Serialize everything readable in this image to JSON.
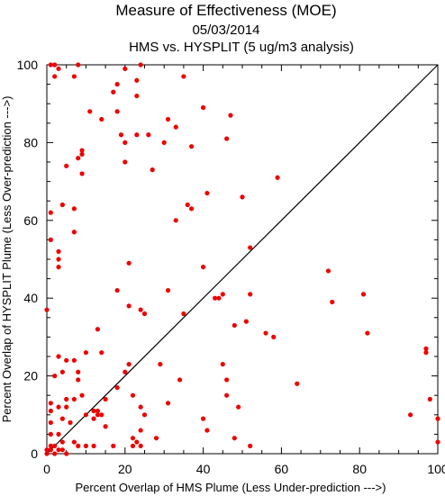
{
  "chart_data": {
    "type": "scatter",
    "title": "Measure of Effectiveness (MOE)",
    "subtitle": "05/03/2014",
    "subtitle2": "HMS vs. HYSPLIT  (5 ug/m3 analysis)",
    "xlabel": "Percent Overlap of HMS Plume (Less Under-prediction --->)",
    "ylabel": "Percent Overlap of HYSPLIT Plume (Less Over-prediction --->)",
    "xlim": [
      0,
      100
    ],
    "ylim": [
      0,
      100
    ],
    "xticks": [
      "0",
      "20",
      "40",
      "60",
      "80",
      "100"
    ],
    "yticks": [
      "0",
      "20",
      "40",
      "60",
      "80",
      "100"
    ],
    "grid": false,
    "point_color": "#ee0000",
    "reference_line": [
      [
        0,
        0
      ],
      [
        100,
        100
      ]
    ],
    "points": [
      [
        1,
        100
      ],
      [
        2,
        100
      ],
      [
        8,
        100
      ],
      [
        24,
        100
      ],
      [
        20,
        99
      ],
      [
        3,
        99
      ],
      [
        2,
        97
      ],
      [
        7,
        97
      ],
      [
        35,
        97
      ],
      [
        18,
        95
      ],
      [
        23,
        96
      ],
      [
        17,
        93
      ],
      [
        23,
        92
      ],
      [
        40,
        89
      ],
      [
        11,
        88
      ],
      [
        18,
        88
      ],
      [
        14,
        86
      ],
      [
        31,
        86
      ],
      [
        47,
        87
      ],
      [
        33,
        84
      ],
      [
        19,
        82
      ],
      [
        26,
        82
      ],
      [
        23,
        82
      ],
      [
        20,
        80
      ],
      [
        30,
        80
      ],
      [
        46,
        81
      ],
      [
        37,
        79
      ],
      [
        9,
        78
      ],
      [
        9,
        77
      ],
      [
        8,
        76
      ],
      [
        20,
        75
      ],
      [
        5,
        74
      ],
      [
        27,
        73
      ],
      [
        9,
        72
      ],
      [
        59,
        71
      ],
      [
        41,
        67
      ],
      [
        50,
        66
      ],
      [
        4,
        64
      ],
      [
        7,
        63
      ],
      [
        36,
        64
      ],
      [
        37,
        63
      ],
      [
        1,
        62
      ],
      [
        33,
        60
      ],
      [
        7,
        57
      ],
      [
        1,
        55
      ],
      [
        52,
        53
      ],
      [
        3,
        52
      ],
      [
        3,
        50
      ],
      [
        3,
        48
      ],
      [
        21,
        49
      ],
      [
        40,
        48
      ],
      [
        72,
        47
      ],
      [
        31,
        42
      ],
      [
        18,
        42
      ],
      [
        52,
        41
      ],
      [
        44,
        40
      ],
      [
        43,
        40
      ],
      [
        45,
        41
      ],
      [
        81,
        41
      ],
      [
        73,
        39
      ],
      [
        21,
        38
      ],
      [
        0,
        37
      ],
      [
        24,
        37
      ],
      [
        25,
        36
      ],
      [
        35,
        36
      ],
      [
        48,
        33
      ],
      [
        51,
        34
      ],
      [
        13,
        32
      ],
      [
        56,
        31
      ],
      [
        82,
        31
      ],
      [
        58,
        30
      ],
      [
        97,
        27
      ],
      [
        97,
        26
      ],
      [
        10,
        26
      ],
      [
        14,
        26
      ],
      [
        3,
        25
      ],
      [
        5,
        24
      ],
      [
        7,
        24
      ],
      [
        21,
        23
      ],
      [
        29,
        23
      ],
      [
        45,
        23
      ],
      [
        4,
        21
      ],
      [
        8,
        21
      ],
      [
        20,
        21
      ],
      [
        2,
        20
      ],
      [
        8,
        19
      ],
      [
        34,
        19
      ],
      [
        46,
        19
      ],
      [
        64,
        18
      ],
      [
        18,
        17
      ],
      [
        9,
        15
      ],
      [
        22,
        15
      ],
      [
        46,
        15
      ],
      [
        5,
        14
      ],
      [
        7,
        14
      ],
      [
        15,
        14
      ],
      [
        98,
        14
      ],
      [
        1,
        13
      ],
      [
        3,
        12
      ],
      [
        5,
        12
      ],
      [
        31,
        13
      ],
      [
        49,
        12
      ],
      [
        24,
        12
      ],
      [
        1,
        11
      ],
      [
        12,
        11
      ],
      [
        13,
        11
      ],
      [
        14,
        10
      ],
      [
        10,
        10
      ],
      [
        25,
        10
      ],
      [
        100,
        9
      ],
      [
        93,
        10
      ],
      [
        40,
        9
      ],
      [
        4,
        9
      ],
      [
        12,
        9
      ],
      [
        13,
        10
      ],
      [
        1,
        8
      ],
      [
        6,
        8
      ],
      [
        15,
        7
      ],
      [
        41,
        6
      ],
      [
        24,
        6
      ],
      [
        1,
        5
      ],
      [
        3,
        5
      ],
      [
        28,
        4
      ],
      [
        22,
        4
      ],
      [
        48,
        4
      ],
      [
        23,
        3
      ],
      [
        100,
        3
      ],
      [
        4,
        3
      ],
      [
        7,
        3
      ],
      [
        1,
        2
      ],
      [
        2,
        2
      ],
      [
        8,
        2
      ],
      [
        10,
        2
      ],
      [
        12,
        2
      ],
      [
        17,
        2
      ],
      [
        22,
        2
      ],
      [
        24,
        2
      ],
      [
        52,
        2
      ],
      [
        0,
        1
      ],
      [
        3,
        1
      ],
      [
        4,
        1
      ],
      [
        1,
        1
      ],
      [
        2,
        0
      ],
      [
        0,
        0
      ],
      [
        5,
        0
      ]
    ]
  }
}
